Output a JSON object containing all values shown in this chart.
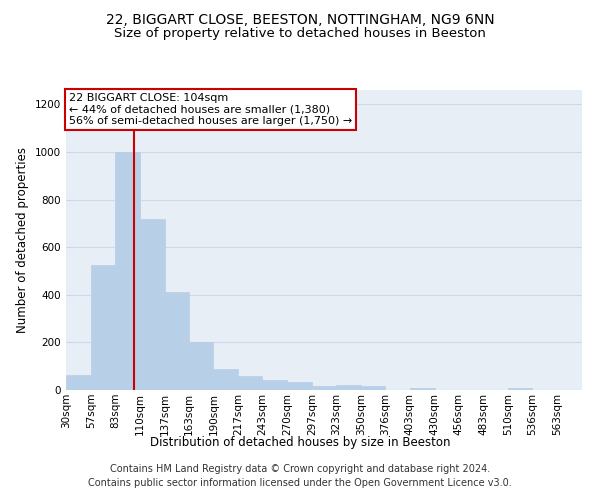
{
  "title_line1": "22, BIGGART CLOSE, BEESTON, NOTTINGHAM, NG9 6NN",
  "title_line2": "Size of property relative to detached houses in Beeston",
  "xlabel": "Distribution of detached houses by size in Beeston",
  "ylabel": "Number of detached properties",
  "footer_line1": "Contains HM Land Registry data © Crown copyright and database right 2024.",
  "footer_line2": "Contains public sector information licensed under the Open Government Licence v3.0.",
  "annotation_line1": "22 BIGGART CLOSE: 104sqm",
  "annotation_line2": "← 44% of detached houses are smaller (1,380)",
  "annotation_line3": "56% of semi-detached houses are larger (1,750) →",
  "bar_color": "#b8cfe8",
  "bar_edge_color": "#b8cfe8",
  "redline_x": 104,
  "categories": [
    "30sqm",
    "57sqm",
    "83sqm",
    "110sqm",
    "137sqm",
    "163sqm",
    "190sqm",
    "217sqm",
    "243sqm",
    "270sqm",
    "297sqm",
    "323sqm",
    "350sqm",
    "376sqm",
    "403sqm",
    "430sqm",
    "456sqm",
    "483sqm",
    "510sqm",
    "536sqm",
    "563sqm"
  ],
  "bin_edges": [
    30,
    57,
    83,
    110,
    137,
    163,
    190,
    217,
    243,
    270,
    297,
    323,
    350,
    376,
    403,
    430,
    456,
    483,
    510,
    536,
    563,
    590
  ],
  "values": [
    65,
    525,
    1000,
    720,
    410,
    200,
    90,
    60,
    42,
    32,
    18,
    20,
    18,
    0,
    10,
    0,
    0,
    0,
    8,
    0,
    0
  ],
  "ylim": [
    0,
    1260
  ],
  "yticks": [
    0,
    200,
    400,
    600,
    800,
    1000,
    1200
  ],
  "grid_color": "#d0d8e4",
  "background_color": "#e8eef6",
  "redline_color": "#cc0000",
  "annotation_box_color": "#ffffff",
  "annotation_box_edge": "#cc0000",
  "title_fontsize": 10,
  "subtitle_fontsize": 9.5,
  "label_fontsize": 8.5,
  "tick_fontsize": 7.5,
  "annotation_fontsize": 8,
  "footer_fontsize": 7
}
